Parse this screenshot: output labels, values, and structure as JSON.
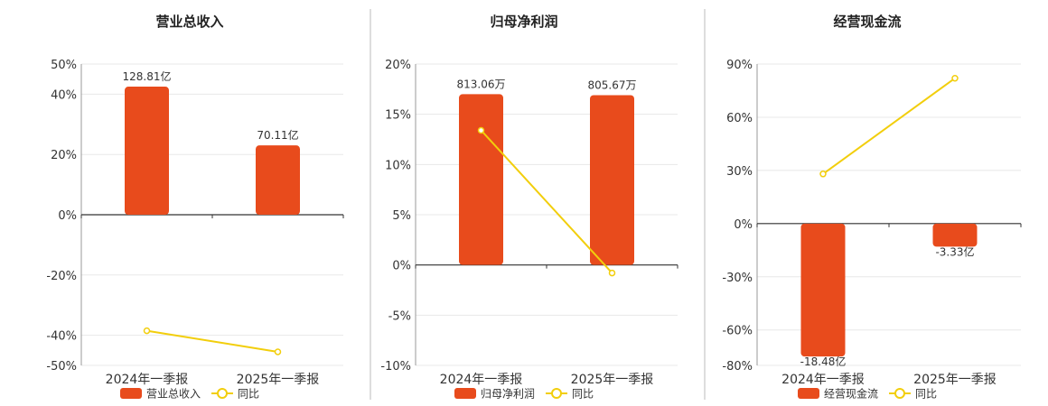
{
  "chart_data": [
    {
      "type": "bar",
      "title": "营业总收入",
      "categories": [
        "2024年一季报",
        "2025年一季报"
      ],
      "series": [
        {
          "name": "营业总收入",
          "type": "bar",
          "labels": [
            "128.81亿",
            "70.11亿"
          ],
          "values": [
            42.5,
            23.0
          ]
        },
        {
          "name": "同比",
          "type": "line",
          "values": [
            -38.5,
            -45.5
          ]
        }
      ],
      "yticks": [
        "50%",
        "40%",
        "20%",
        "0%",
        "-20%",
        "-40%",
        "-50%"
      ],
      "ylim": [
        -50,
        50
      ],
      "grid": true,
      "legend": "bottom"
    },
    {
      "type": "bar",
      "title": "归母净利润",
      "categories": [
        "2024年一季报",
        "2025年一季报"
      ],
      "series": [
        {
          "name": "归母净利润",
          "type": "bar",
          "labels": [
            "813.06万",
            "805.67万"
          ],
          "values": [
            17.0,
            16.9
          ]
        },
        {
          "name": "同比",
          "type": "line",
          "values": [
            13.4,
            -0.8
          ]
        }
      ],
      "yticks": [
        "20%",
        "15%",
        "10%",
        "5%",
        "0%",
        "-5%",
        "-10%"
      ],
      "ylim": [
        -10,
        20
      ],
      "grid": true,
      "legend": "bottom"
    },
    {
      "type": "bar",
      "title": "经营现金流",
      "categories": [
        "2024年一季报",
        "2025年一季报"
      ],
      "series": [
        {
          "name": "经营现金流",
          "type": "bar",
          "labels": [
            "-18.48亿",
            "-3.33亿"
          ],
          "values": [
            -75.0,
            -13.0
          ]
        },
        {
          "name": "同比",
          "type": "line",
          "values": [
            28.0,
            82.0
          ]
        }
      ],
      "yticks": [
        "90%",
        "60%",
        "30%",
        "0%",
        "-30%",
        "-60%",
        "-80%"
      ],
      "ylim": [
        -80,
        90
      ],
      "grid": true,
      "legend": "bottom"
    }
  ],
  "colors": {
    "bar": "#E84B1C",
    "line": "#F2CE0C",
    "grid": "#E8E8E8",
    "axis": "#333333",
    "divider": "#BBBBBB"
  }
}
